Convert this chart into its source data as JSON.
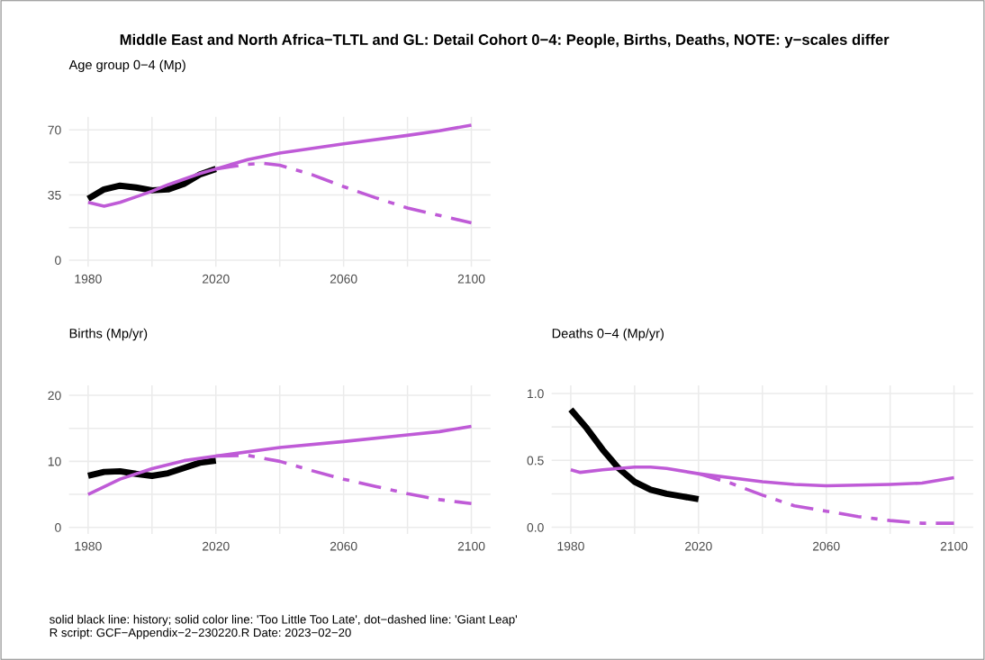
{
  "chart_data": [
    {
      "type": "other",
      "title": "Middle East and North Africa−TLTL and GL: Detail Cohort 0−4: People, Births, Deaths, NOTE: y−scales differ",
      "annotations": [
        "solid black line: history; solid color line: 'Too Little Too Late', dot−dashed line: 'Giant Leap'",
        "R script: GCF−Appendix−2−230220.R Date: 2023−02−20"
      ]
    },
    {
      "type": "line",
      "title": "Age group 0−4 (Mp)",
      "grid": true,
      "xlim": [
        1974,
        2106
      ],
      "xticks": [
        1980,
        {
          "value": 2000,
          "label": null
        },
        2020,
        {
          "value": 2040,
          "label": null
        },
        2060,
        {
          "value": 2080,
          "label": null
        },
        2100
      ],
      "ylim": [
        -3.5,
        77
      ],
      "yticks": [
        0,
        {
          "value": 17.5,
          "label": null
        },
        35,
        {
          "value": 52.5,
          "label": null
        },
        70
      ],
      "series": [
        {
          "color": "#000000",
          "line_style": "solid",
          "x": [
            1980,
            1985,
            1990,
            1995,
            2000,
            2005,
            2010,
            2015,
            2020
          ],
          "values": [
            33,
            38,
            40,
            39,
            37.5,
            38,
            41,
            46,
            49
          ]
        },
        {
          "color": "#bf5bd7",
          "line_style": "solid",
          "x": [
            1980,
            1985,
            1990,
            1995,
            2000,
            2005,
            2010,
            2015,
            2020,
            2030,
            2040,
            2060,
            2080,
            2090,
            2100
          ],
          "values": [
            31,
            29,
            31,
            34,
            37,
            40.5,
            43.5,
            46.5,
            49,
            54,
            57.5,
            62.5,
            67,
            69.5,
            72.5
          ]
        },
        {
          "color": "#bf5bd7",
          "line_style": "dashdot",
          "x": [
            2020,
            2030,
            2035,
            2040,
            2050,
            2060,
            2070,
            2080,
            2090,
            2100
          ],
          "values": [
            49,
            51.5,
            52,
            51,
            46,
            39.5,
            33.5,
            28,
            24,
            20
          ]
        }
      ]
    },
    {
      "type": "line",
      "title": "Births (Mp/yr)",
      "grid": true,
      "xlim": [
        1974,
        2106
      ],
      "xticks": [
        1980,
        {
          "value": 2000,
          "label": null
        },
        2020,
        {
          "value": 2040,
          "label": null
        },
        2060,
        {
          "value": 2080,
          "label": null
        },
        2100
      ],
      "ylim": [
        -1,
        21.5
      ],
      "yticks": [
        0,
        {
          "value": 5,
          "label": null
        },
        10,
        {
          "value": 15,
          "label": null
        },
        20
      ],
      "series": [
        {
          "color": "#000000",
          "line_style": "solid",
          "x": [
            1980,
            1985,
            1990,
            1995,
            2000,
            2005,
            2010,
            2015,
            2020
          ],
          "values": [
            7.8,
            8.4,
            8.5,
            8.1,
            7.8,
            8.2,
            9.0,
            9.8,
            10.1
          ]
        },
        {
          "color": "#bf5bd7",
          "line_style": "solid",
          "x": [
            1980,
            1990,
            2000,
            2010,
            2020,
            2040,
            2060,
            2080,
            2090,
            2100
          ],
          "values": [
            5.0,
            7.3,
            8.9,
            10.1,
            10.8,
            12.1,
            13.0,
            14.0,
            14.5,
            15.3
          ]
        },
        {
          "color": "#bf5bd7",
          "line_style": "dashdot",
          "x": [
            2020,
            2030,
            2040,
            2050,
            2060,
            2070,
            2080,
            2090,
            2100
          ],
          "values": [
            10.8,
            10.9,
            10.0,
            8.6,
            7.3,
            6.2,
            5.1,
            4.2,
            3.6
          ]
        }
      ]
    },
    {
      "type": "line",
      "title": "Deaths 0−4 (Mp/yr)",
      "grid": true,
      "xlim": [
        1974,
        2106
      ],
      "xticks": [
        1980,
        {
          "value": 2000,
          "label": null
        },
        2020,
        {
          "value": 2040,
          "label": null
        },
        2060,
        {
          "value": 2080,
          "label": null
        },
        2100
      ],
      "ylim": [
        -0.05,
        1.06
      ],
      "yticks": [
        {
          "value": 0,
          "label": "0.0"
        },
        {
          "value": 0.25,
          "label": null
        },
        0.5,
        {
          "value": 0.75,
          "label": null
        },
        {
          "value": 1,
          "label": "1.0"
        }
      ],
      "series": [
        {
          "color": "#000000",
          "line_style": "solid",
          "x": [
            1980,
            1985,
            1990,
            1995,
            2000,
            2005,
            2010,
            2015,
            2020
          ],
          "values": [
            0.88,
            0.74,
            0.58,
            0.44,
            0.34,
            0.28,
            0.25,
            0.23,
            0.21
          ]
        },
        {
          "color": "#bf5bd7",
          "line_style": "solid",
          "x": [
            1980,
            1983,
            1990,
            2000,
            2005,
            2010,
            2020,
            2040,
            2050,
            2060,
            2080,
            2090,
            2100
          ],
          "values": [
            0.43,
            0.41,
            0.43,
            0.45,
            0.45,
            0.44,
            0.4,
            0.34,
            0.32,
            0.31,
            0.32,
            0.33,
            0.37
          ]
        },
        {
          "color": "#bf5bd7",
          "line_style": "dashdot",
          "x": [
            2020,
            2030,
            2040,
            2050,
            2060,
            2070,
            2080,
            2090,
            2100
          ],
          "values": [
            0.4,
            0.33,
            0.24,
            0.16,
            0.12,
            0.08,
            0.05,
            0.03,
            0.03
          ]
        }
      ]
    }
  ]
}
